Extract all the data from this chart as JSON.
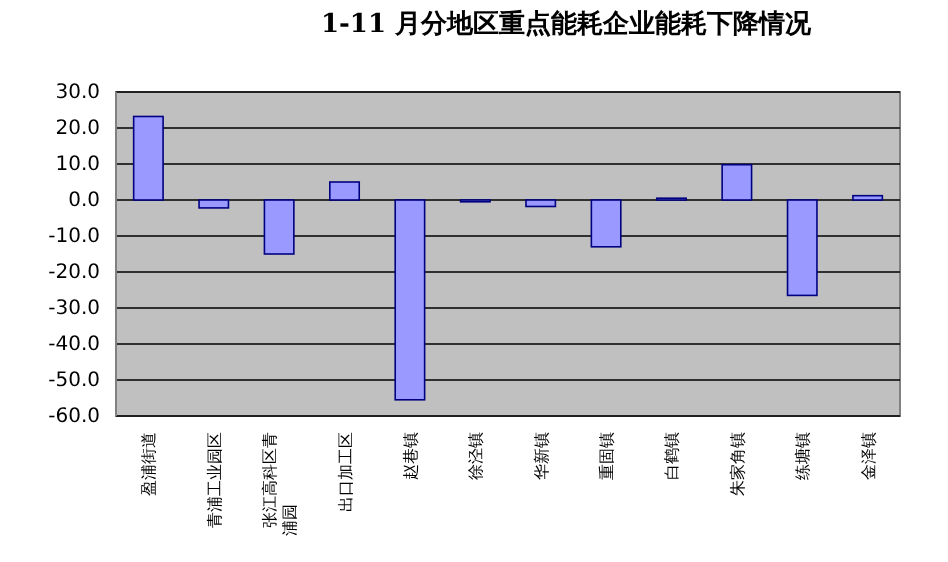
{
  "chart_data": {
    "type": "bar",
    "title": "1-11 月分地区重点能耗企业能耗下降情况",
    "categories": [
      "盈浦街道",
      "青浦工业园区",
      "张江高科区青浦园",
      "出口加工区",
      "赵巷镇",
      "徐泾镇",
      "华新镇",
      "重固镇",
      "白鹤镇",
      "朱家角镇",
      "练塘镇",
      "金泽镇"
    ],
    "values": [
      23.2,
      -2.2,
      -15.0,
      5.0,
      -55.5,
      -0.5,
      -1.8,
      -13.0,
      0.5,
      9.8,
      -26.5,
      1.2
    ],
    "color": "#9999ff",
    "ylim": [
      -60,
      30
    ],
    "yticks": [
      {
        "value": -60,
        "label": "-60.0"
      },
      {
        "value": -50,
        "label": "-50.0"
      },
      {
        "value": -40,
        "label": "-40.0"
      },
      {
        "value": -30,
        "label": "-30.0"
      },
      {
        "value": -20,
        "label": "-20.0"
      },
      {
        "value": -10,
        "label": "-10.0"
      },
      {
        "value": 0,
        "label": "0.0"
      },
      {
        "value": 10,
        "label": "10.0"
      },
      {
        "value": 20,
        "label": "20.0"
      },
      {
        "value": 30,
        "label": "30.0"
      }
    ],
    "grid": "y"
  }
}
